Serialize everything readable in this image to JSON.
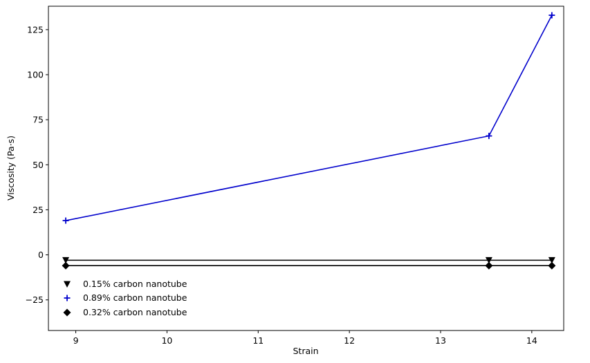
{
  "chart_data": {
    "type": "line",
    "xlabel": "Strain",
    "ylabel": "Viscosity (Pa·s)",
    "xlim": [
      8.7,
      14.35
    ],
    "ylim": [
      -42,
      138
    ],
    "xticks": [
      9,
      10,
      11,
      12,
      13,
      14
    ],
    "yticks": [
      -25,
      0,
      25,
      50,
      75,
      100,
      125
    ],
    "grid": false,
    "legend_position": "lower-left",
    "series": [
      {
        "name": "0.15% carbon nanotube",
        "marker": "triangle-down",
        "color": "#000000",
        "x": [
          8.89,
          13.53,
          14.22
        ],
        "y": [
          -3,
          -3,
          -3
        ]
      },
      {
        "name": "0.89% carbon nanotube",
        "marker": "plus",
        "color": "#0000cc",
        "x": [
          8.89,
          13.53,
          14.22
        ],
        "y": [
          19,
          66,
          133
        ]
      },
      {
        "name": "0.32% carbon nanotube",
        "marker": "diamond",
        "color": "#000000",
        "x": [
          8.89,
          13.53,
          14.22
        ],
        "y": [
          -6,
          -6,
          -6
        ]
      }
    ]
  }
}
